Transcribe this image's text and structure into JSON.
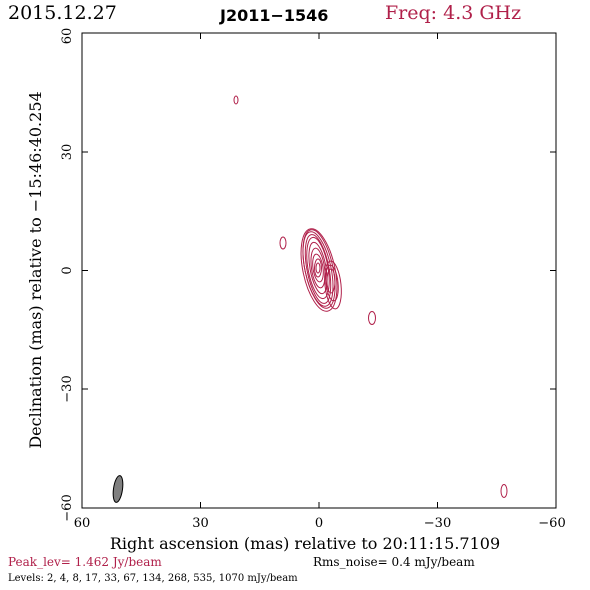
{
  "header": {
    "date": "2015.12.27",
    "source": "J2011−1546",
    "frequency": "Freq: 4.3 GHz"
  },
  "axes": {
    "xlabel": "Right ascension (mas) relative to 20:11:15.7109",
    "ylabel": "Declination (mas) relative to −15:46:40.254",
    "x_range": [
      60,
      -60
    ],
    "y_range": [
      -60,
      60
    ],
    "x_ticks": [
      "60",
      "30",
      "0",
      "−30",
      "−60"
    ],
    "y_ticks": [
      "−60",
      "−30",
      "0",
      "30",
      "60"
    ]
  },
  "footer": {
    "peak": "Peak_lev=  1.462 Jy/beam",
    "rms": "Rms_noise=  0.4 mJy/beam",
    "levels": "Levels:   2,    4,    8,   17,   33,   67,  134,  268,  535,  1070 mJy/beam"
  },
  "colors": {
    "contour": "#b0204a",
    "beam": "#777777",
    "frame": "#000000"
  }
}
